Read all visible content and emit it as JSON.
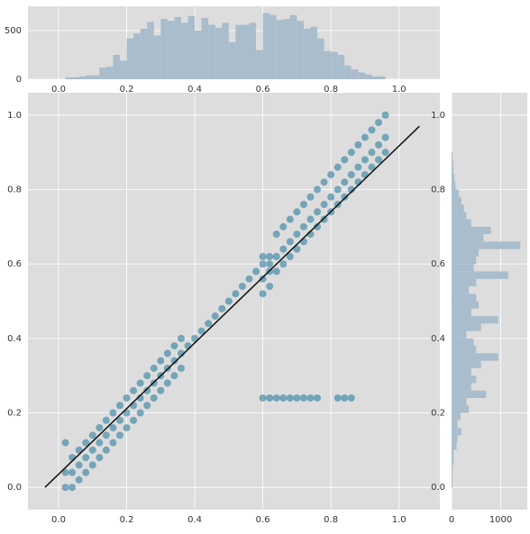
{
  "chart_data": [
    {
      "type": "scatter",
      "color": "#0a6b94",
      "line_color": "#111111",
      "grid": true,
      "xlim": [
        -0.09,
        1.12
      ],
      "ylim": [
        -0.06,
        1.06
      ],
      "xticks": [
        {
          "value": 0,
          "label": "0.0"
        },
        0.2,
        0.4,
        0.6,
        0.8,
        {
          "value": 1,
          "label": "1.0"
        }
      ],
      "yticks": [
        {
          "value": 0,
          "label": "0.0"
        },
        0.2,
        0.4,
        0.6,
        0.8,
        {
          "value": 1,
          "label": "1.0"
        }
      ],
      "x": [
        0.02,
        0.02,
        0.02,
        0.04,
        0.04,
        0.04,
        0.06,
        0.06,
        0.06,
        0.08,
        0.08,
        0.08,
        0.1,
        0.1,
        0.1,
        0.12,
        0.12,
        0.12,
        0.14,
        0.14,
        0.14,
        0.16,
        0.16,
        0.16,
        0.18,
        0.18,
        0.18,
        0.2,
        0.2,
        0.2,
        0.22,
        0.22,
        0.22,
        0.24,
        0.24,
        0.24,
        0.26,
        0.26,
        0.26,
        0.28,
        0.28,
        0.28,
        0.3,
        0.3,
        0.3,
        0.32,
        0.32,
        0.32,
        0.34,
        0.34,
        0.34,
        0.36,
        0.36,
        0.36,
        0.38,
        0.4,
        0.42,
        0.44,
        0.46,
        0.48,
        0.5,
        0.52,
        0.54,
        0.56,
        0.58,
        0.6,
        0.6,
        0.6,
        0.6,
        0.62,
        0.62,
        0.62,
        0.62,
        0.64,
        0.64,
        0.64,
        0.66,
        0.66,
        0.66,
        0.68,
        0.68,
        0.68,
        0.7,
        0.7,
        0.7,
        0.72,
        0.72,
        0.72,
        0.74,
        0.74,
        0.74,
        0.76,
        0.76,
        0.76,
        0.78,
        0.78,
        0.78,
        0.8,
        0.8,
        0.8,
        0.82,
        0.82,
        0.82,
        0.84,
        0.84,
        0.84,
        0.86,
        0.86,
        0.86,
        0.88,
        0.88,
        0.88,
        0.9,
        0.9,
        0.9,
        0.92,
        0.92,
        0.92,
        0.94,
        0.94,
        0.94,
        0.96,
        0.96,
        0.96,
        0.6,
        0.62,
        0.64,
        0.66,
        0.68,
        0.7,
        0.72,
        0.74,
        0.76,
        0.82,
        0.84,
        0.86
      ],
      "y": [
        0.0,
        0.04,
        0.12,
        0.0,
        0.04,
        0.08,
        0.02,
        0.06,
        0.1,
        0.04,
        0.08,
        0.12,
        0.06,
        0.1,
        0.14,
        0.08,
        0.12,
        0.16,
        0.1,
        0.14,
        0.18,
        0.12,
        0.16,
        0.2,
        0.14,
        0.18,
        0.22,
        0.16,
        0.2,
        0.24,
        0.18,
        0.22,
        0.26,
        0.2,
        0.24,
        0.28,
        0.22,
        0.26,
        0.3,
        0.24,
        0.28,
        0.32,
        0.26,
        0.3,
        0.34,
        0.28,
        0.32,
        0.36,
        0.3,
        0.34,
        0.38,
        0.32,
        0.36,
        0.4,
        0.38,
        0.4,
        0.42,
        0.44,
        0.46,
        0.48,
        0.5,
        0.52,
        0.54,
        0.56,
        0.58,
        0.52,
        0.56,
        0.6,
        0.62,
        0.54,
        0.58,
        0.6,
        0.62,
        0.58,
        0.62,
        0.68,
        0.6,
        0.64,
        0.7,
        0.62,
        0.66,
        0.72,
        0.64,
        0.68,
        0.74,
        0.66,
        0.7,
        0.76,
        0.68,
        0.72,
        0.78,
        0.7,
        0.74,
        0.8,
        0.72,
        0.76,
        0.82,
        0.74,
        0.78,
        0.84,
        0.76,
        0.8,
        0.86,
        0.78,
        0.82,
        0.88,
        0.8,
        0.84,
        0.9,
        0.82,
        0.86,
        0.92,
        0.84,
        0.88,
        0.94,
        0.86,
        0.9,
        0.96,
        0.88,
        0.92,
        0.98,
        0.9,
        0.94,
        1.0,
        0.24,
        0.24,
        0.24,
        0.24,
        0.24,
        0.24,
        0.24,
        0.24,
        0.24,
        0.24,
        0.24,
        0.24
      ],
      "line_x": [
        -0.04,
        1.06
      ],
      "line_y": [
        0.0,
        0.97
      ]
    },
    {
      "type": "histogram",
      "orientation": "vertical",
      "color": "#a9bdcc",
      "grid": true,
      "xlim": [
        -0.09,
        1.12
      ],
      "ylim": [
        0,
        750
      ],
      "xticks": [
        {
          "value": 0,
          "label": "0.0"
        },
        0.2,
        0.4,
        0.6,
        0.8,
        {
          "value": 1,
          "label": "1.0"
        }
      ],
      "yticks": [
        0,
        500
      ],
      "bins": [
        0,
        0.02,
        0.04,
        0.06,
        0.08,
        0.1,
        0.12,
        0.14,
        0.16,
        0.18,
        0.2,
        0.22,
        0.24,
        0.26,
        0.28,
        0.3,
        0.32,
        0.34,
        0.36,
        0.38,
        0.4,
        0.42,
        0.44,
        0.46,
        0.48,
        0.5,
        0.52,
        0.54,
        0.56,
        0.58,
        0.6,
        0.62,
        0.64,
        0.66,
        0.68,
        0.7,
        0.72,
        0.74,
        0.76,
        0.78,
        0.8,
        0.82,
        0.84,
        0.86,
        0.88,
        0.9,
        0.92,
        0.94,
        0.96,
        0.98,
        1.0
      ],
      "counts": [
        0,
        20,
        20,
        30,
        40,
        40,
        120,
        130,
        250,
        190,
        420,
        470,
        520,
        590,
        450,
        620,
        600,
        640,
        580,
        650,
        500,
        630,
        560,
        530,
        580,
        380,
        560,
        560,
        580,
        300,
        680,
        660,
        610,
        620,
        660,
        600,
        520,
        540,
        420,
        290,
        280,
        250,
        140,
        100,
        70,
        50,
        30,
        30,
        0,
        0
      ]
    },
    {
      "type": "histogram",
      "orientation": "horizontal",
      "color": "#a9bdcc",
      "grid": true,
      "xlim": [
        0,
        1540
      ],
      "ylim": [
        -0.06,
        1.06
      ],
      "xticks": [
        0,
        1000
      ],
      "yticks": [
        {
          "value": 0,
          "label": "0.0"
        },
        0.2,
        0.4,
        0.6,
        0.8,
        {
          "value": 1,
          "label": "1.0"
        }
      ],
      "bins": [
        0,
        0.02,
        0.04,
        0.06,
        0.08,
        0.1,
        0.12,
        0.14,
        0.16,
        0.18,
        0.2,
        0.22,
        0.24,
        0.26,
        0.28,
        0.3,
        0.32,
        0.34,
        0.36,
        0.38,
        0.4,
        0.42,
        0.44,
        0.46,
        0.48,
        0.5,
        0.52,
        0.54,
        0.56,
        0.58,
        0.6,
        0.62,
        0.64,
        0.66,
        0.68,
        0.7,
        0.72,
        0.74,
        0.76,
        0.78,
        0.8,
        0.82,
        0.84,
        0.86,
        0.88,
        0.9,
        0.92,
        0.94,
        0.96,
        0.98,
        1.0
      ],
      "counts": [
        20,
        20,
        20,
        40,
        40,
        100,
        120,
        200,
        120,
        180,
        350,
        300,
        700,
        400,
        500,
        400,
        600,
        950,
        500,
        450,
        300,
        600,
        950,
        400,
        550,
        500,
        350,
        500,
        1150,
        450,
        500,
        550,
        1400,
        650,
        800,
        400,
        300,
        250,
        200,
        150,
        80,
        60,
        40,
        30,
        20,
        0,
        0,
        0,
        0,
        0
      ]
    }
  ]
}
